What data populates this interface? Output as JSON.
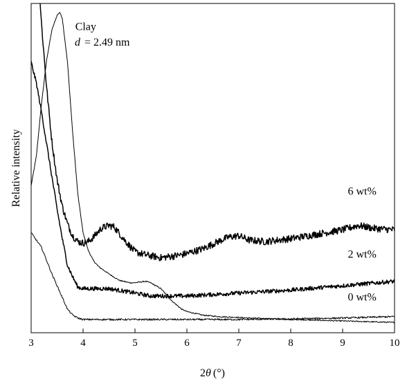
{
  "chart_data": {
    "type": "line",
    "title": "",
    "xlabel_prefix": "2",
    "xlabel_symbol": "θ",
    "xlabel_unit": "(°)",
    "ylabel": "Relative intensity",
    "xlim": [
      3,
      10
    ],
    "x_ticks": [
      3,
      4,
      5,
      6,
      7,
      8,
      9,
      10
    ],
    "y_ticks_shown": false,
    "grid": false,
    "legend": "none",
    "annotations": {
      "d_symbol": "d",
      "d_value": "= 2.49 nm"
    },
    "series": [
      {
        "name": "Clay",
        "color": "#000000",
        "line_width": 1.0,
        "noise": 0.002,
        "points": [
          [
            3.0,
            0.5
          ],
          [
            3.1,
            0.6
          ],
          [
            3.2,
            0.78
          ],
          [
            3.3,
            0.93
          ],
          [
            3.4,
            1.03
          ],
          [
            3.5,
            1.08
          ],
          [
            3.55,
            1.09
          ],
          [
            3.6,
            1.07
          ],
          [
            3.7,
            0.92
          ],
          [
            3.8,
            0.68
          ],
          [
            3.9,
            0.47
          ],
          [
            4.0,
            0.34
          ],
          [
            4.1,
            0.28
          ],
          [
            4.2,
            0.245
          ],
          [
            4.3,
            0.225
          ],
          [
            4.5,
            0.2
          ],
          [
            4.7,
            0.178
          ],
          [
            4.9,
            0.17
          ],
          [
            5.0,
            0.17
          ],
          [
            5.2,
            0.175
          ],
          [
            5.3,
            0.17
          ],
          [
            5.5,
            0.15
          ],
          [
            5.7,
            0.11
          ],
          [
            5.9,
            0.08
          ],
          [
            6.0,
            0.072
          ],
          [
            6.3,
            0.06
          ],
          [
            6.6,
            0.055
          ],
          [
            7.0,
            0.052
          ],
          [
            7.2,
            0.05
          ],
          [
            8.0,
            0.045
          ],
          [
            9.0,
            0.04
          ],
          [
            10.0,
            0.035
          ]
        ]
      },
      {
        "name": "6 wt%",
        "color": "#000000",
        "line_width": 1.5,
        "noise": 0.012,
        "points": [
          [
            3.0,
            1.3
          ],
          [
            3.1,
            1.25
          ],
          [
            3.15,
            1.19
          ],
          [
            3.2,
            1.05
          ],
          [
            3.3,
            0.83
          ],
          [
            3.4,
            0.65
          ],
          [
            3.5,
            0.52
          ],
          [
            3.6,
            0.43
          ],
          [
            3.7,
            0.37
          ],
          [
            3.8,
            0.33
          ],
          [
            3.9,
            0.31
          ],
          [
            4.0,
            0.305
          ],
          [
            4.1,
            0.31
          ],
          [
            4.2,
            0.325
          ],
          [
            4.35,
            0.355
          ],
          [
            4.5,
            0.365
          ],
          [
            4.6,
            0.36
          ],
          [
            4.8,
            0.315
          ],
          [
            5.0,
            0.275
          ],
          [
            5.2,
            0.265
          ],
          [
            5.5,
            0.255
          ],
          [
            5.9,
            0.265
          ],
          [
            6.3,
            0.285
          ],
          [
            6.6,
            0.31
          ],
          [
            6.8,
            0.325
          ],
          [
            7.0,
            0.33
          ],
          [
            7.2,
            0.315
          ],
          [
            7.5,
            0.31
          ],
          [
            8.0,
            0.32
          ],
          [
            8.5,
            0.335
          ],
          [
            9.0,
            0.35
          ],
          [
            9.3,
            0.365
          ],
          [
            9.6,
            0.355
          ],
          [
            10.0,
            0.35
          ]
        ]
      },
      {
        "name": "2 wt%",
        "color": "#000000",
        "line_width": 1.5,
        "noise": 0.007,
        "points": [
          [
            3.0,
            0.92
          ],
          [
            3.1,
            0.85
          ],
          [
            3.2,
            0.75
          ],
          [
            3.3,
            0.64
          ],
          [
            3.4,
            0.53
          ],
          [
            3.5,
            0.42
          ],
          [
            3.6,
            0.32
          ],
          [
            3.7,
            0.23
          ],
          [
            3.8,
            0.19
          ],
          [
            3.9,
            0.155
          ],
          [
            4.0,
            0.15
          ],
          [
            4.5,
            0.15
          ],
          [
            5.0,
            0.135
          ],
          [
            5.3,
            0.125
          ],
          [
            5.6,
            0.125
          ],
          [
            6.0,
            0.125
          ],
          [
            7.0,
            0.135
          ],
          [
            8.0,
            0.145
          ],
          [
            9.0,
            0.16
          ],
          [
            10.0,
            0.175
          ]
        ]
      },
      {
        "name": "0 wt%",
        "color": "#000000",
        "line_width": 1.0,
        "noise": 0.003,
        "points": [
          [
            3.0,
            0.34
          ],
          [
            3.2,
            0.29
          ],
          [
            3.4,
            0.2
          ],
          [
            3.6,
            0.12
          ],
          [
            3.7,
            0.08
          ],
          [
            3.8,
            0.06
          ],
          [
            3.9,
            0.05
          ],
          [
            4.0,
            0.045
          ],
          [
            4.5,
            0.045
          ],
          [
            5.0,
            0.045
          ],
          [
            6.0,
            0.045
          ],
          [
            7.0,
            0.045
          ],
          [
            8.0,
            0.047
          ],
          [
            9.0,
            0.05
          ],
          [
            10.0,
            0.055
          ]
        ]
      }
    ],
    "series_labels": [
      {
        "text": "Clay",
        "x": 3.85,
        "y": 1.03
      },
      {
        "text": "6 wt%",
        "x": 9.1,
        "y": 0.47
      },
      {
        "text": "2 wt%",
        "x": 9.1,
        "y": 0.255
      },
      {
        "text": "0 wt%",
        "x": 9.1,
        "y": 0.11
      }
    ]
  }
}
